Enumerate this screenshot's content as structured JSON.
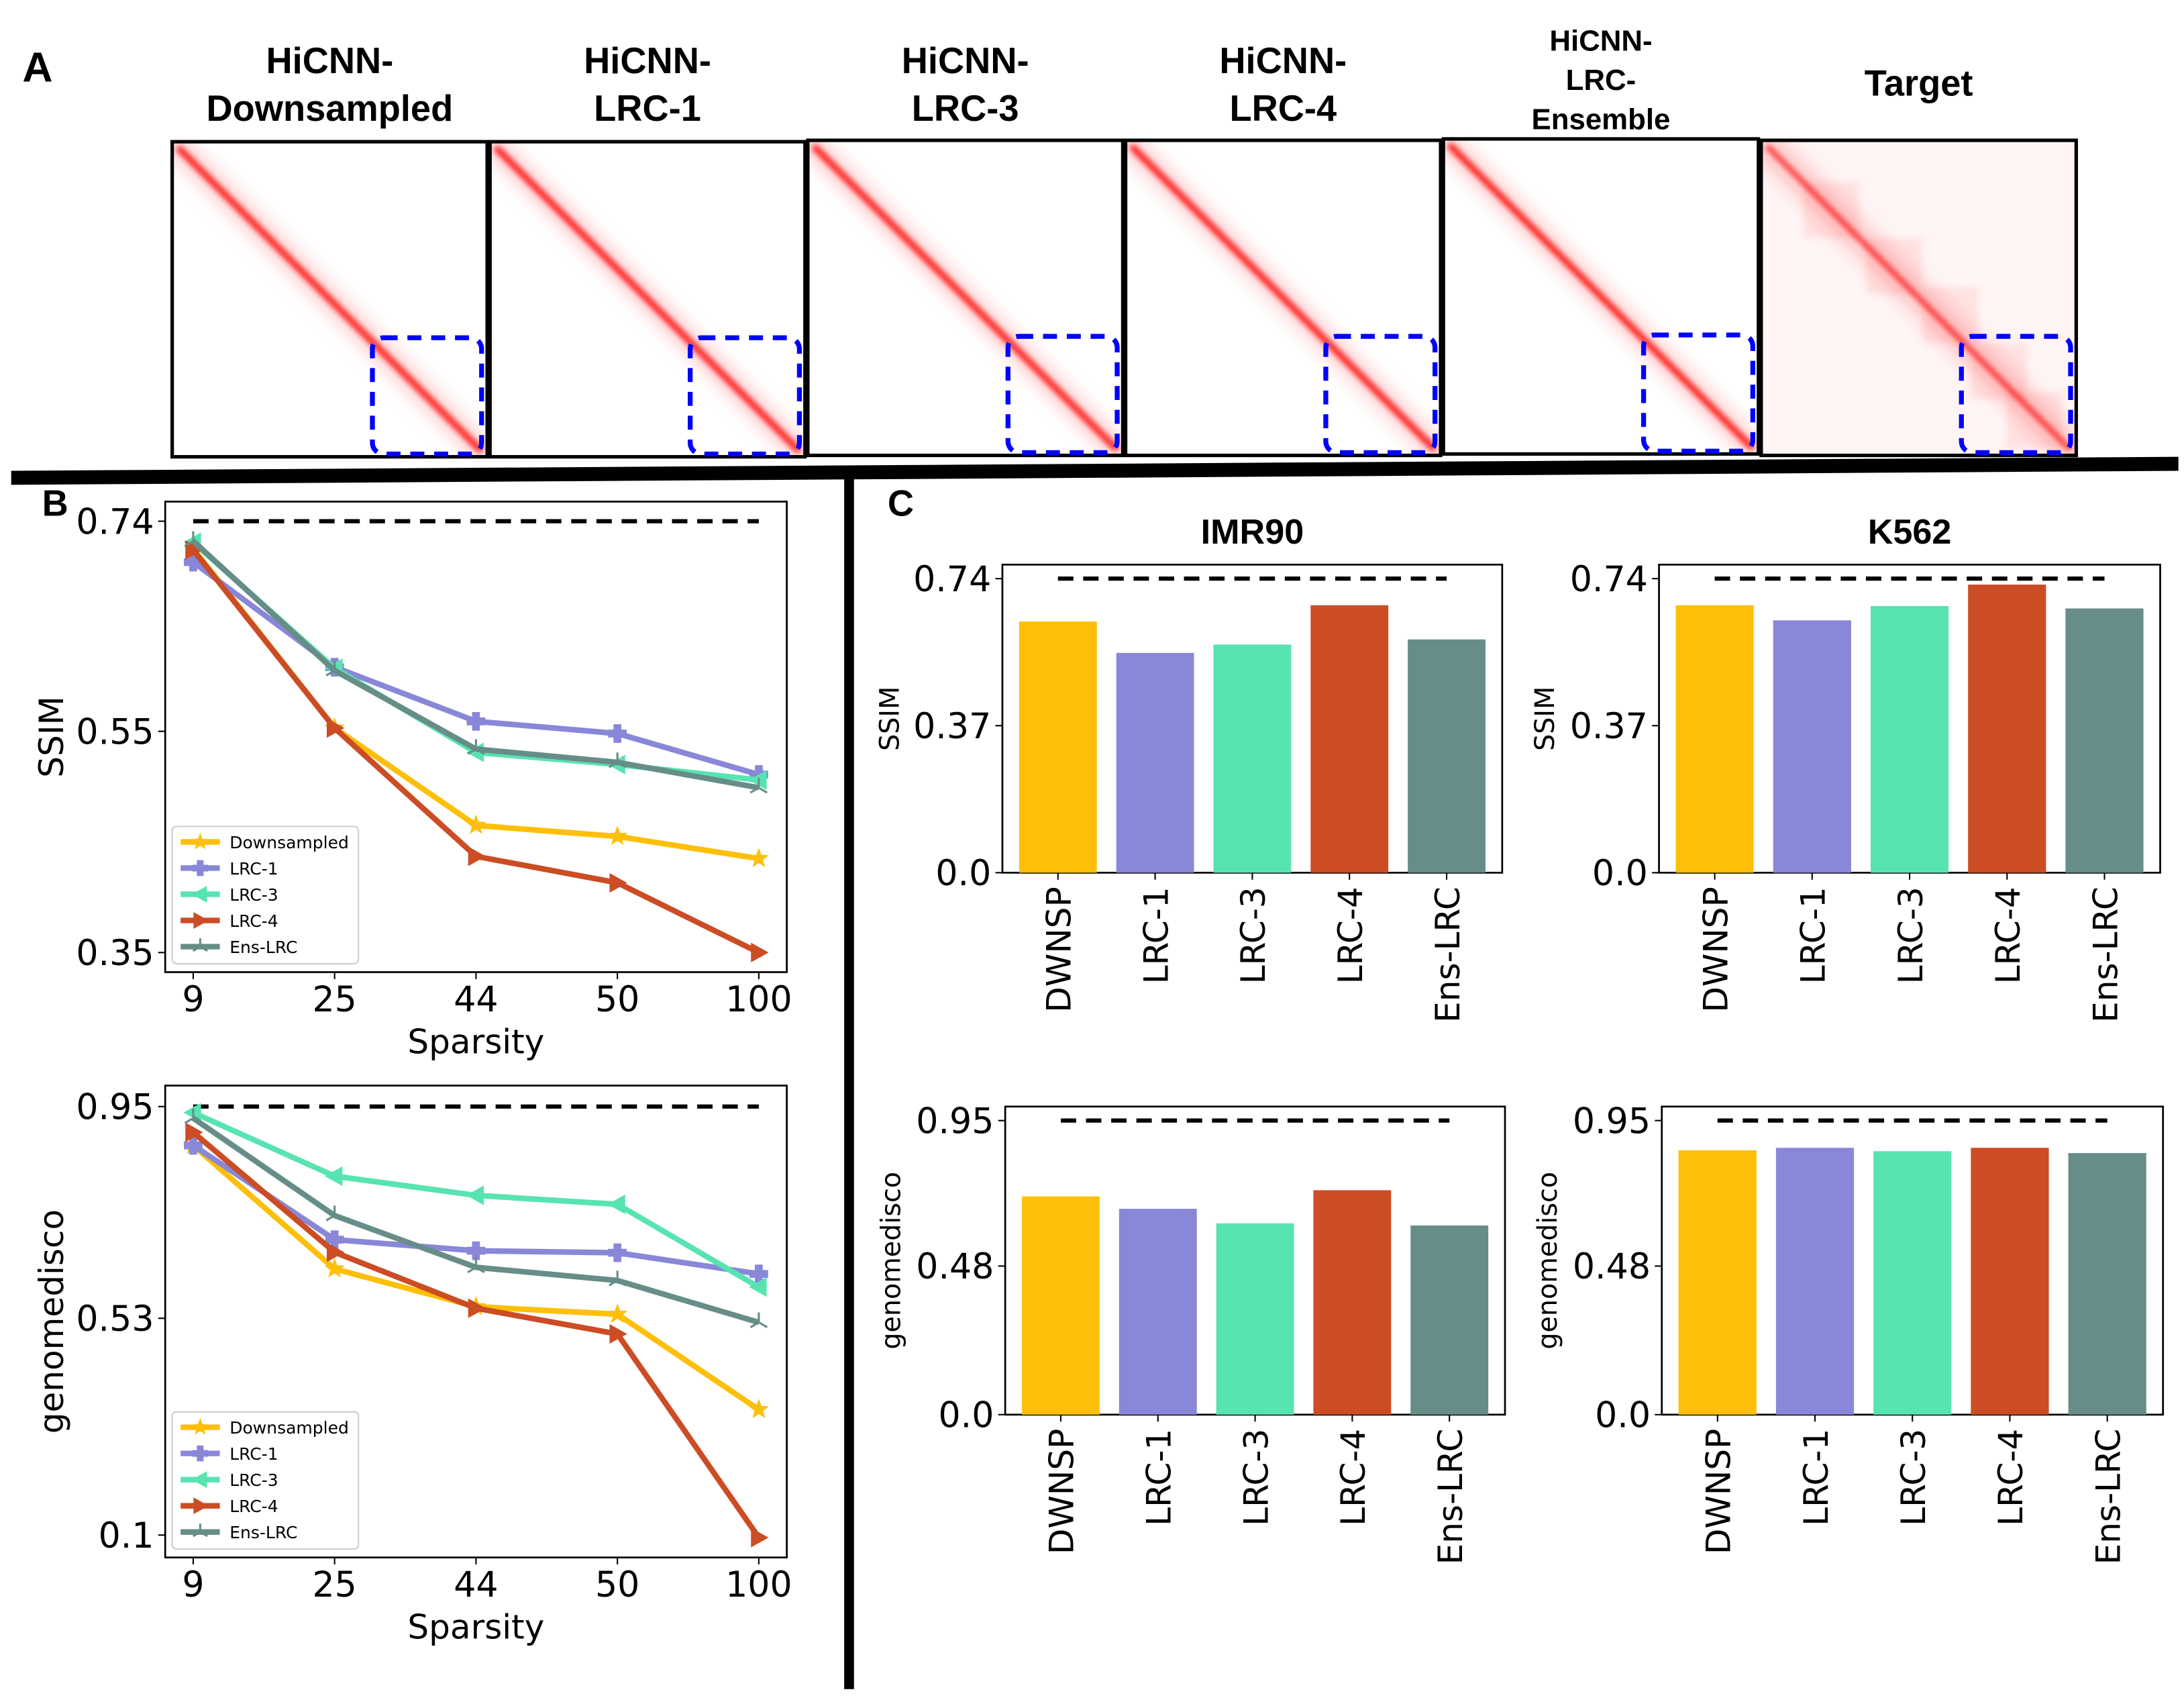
{
  "panel_labels": {
    "a": "A",
    "b": "B",
    "c": "C"
  },
  "panel_a": {
    "titles": [
      [
        "HiCNN-",
        "Downsampled"
      ],
      [
        "HiCNN-",
        "LRC-1"
      ],
      [
        "HiCNN-",
        "LRC-3"
      ],
      [
        "HiCNN-",
        "LRC-4"
      ],
      [
        "HiCNN-",
        "LRC-",
        "Ensemble"
      ],
      [
        "Target"
      ]
    ],
    "heatmap_color": "#ff0000",
    "highlight_box_color": "#0000ff"
  },
  "colors": {
    "Downsampled": "#FDBF08",
    "LRC-1": "#8887D8",
    "LRC-3": "#57E4B0",
    "LRC-4": "#CC4C24",
    "Ens-LRC": "#678D88"
  },
  "chart_data": [
    {
      "id": "b-ssim",
      "type": "line",
      "xlabel": "Sparsity",
      "ylabel": "SSIM",
      "categories": [
        "9",
        "25",
        "44",
        "50",
        "100"
      ],
      "yticks": [
        "0.74",
        "0.55",
        "0.35"
      ],
      "ylim": [
        0.35,
        0.74
      ],
      "reference_line": 0.74,
      "legend": "lower-left",
      "grid": false,
      "series": [
        {
          "name": "Downsampled",
          "marker": "star",
          "values": [
            0.715,
            0.553,
            0.465,
            0.455,
            0.435
          ]
        },
        {
          "name": "LRC-1",
          "marker": "plus-filled",
          "values": [
            0.703,
            0.608,
            0.559,
            0.548,
            0.511
          ]
        },
        {
          "name": "LRC-3",
          "marker": "triangle-left",
          "values": [
            0.721,
            0.607,
            0.531,
            0.52,
            0.506
          ]
        },
        {
          "name": "LRC-4",
          "marker": "triangle-right",
          "values": [
            0.714,
            0.553,
            0.437,
            0.413,
            0.35
          ]
        },
        {
          "name": "Ens-LRC",
          "marker": "tri-down",
          "values": [
            0.722,
            0.605,
            0.534,
            0.522,
            0.499
          ]
        }
      ]
    },
    {
      "id": "b-genomedisco",
      "type": "line",
      "xlabel": "Sparsity",
      "ylabel": "genomedisco",
      "categories": [
        "9",
        "25",
        "44",
        "50",
        "100"
      ],
      "yticks": [
        "0.95",
        "0.53",
        "0.1"
      ],
      "ylim": [
        0.1,
        0.95
      ],
      "reference_line": 0.95,
      "legend": "lower-left",
      "grid": false,
      "series": [
        {
          "name": "Downsampled",
          "marker": "star",
          "values": [
            0.873,
            0.628,
            0.553,
            0.538,
            0.349
          ]
        },
        {
          "name": "LRC-1",
          "marker": "plus-filled",
          "values": [
            0.873,
            0.686,
            0.664,
            0.66,
            0.618
          ]
        },
        {
          "name": "LRC-3",
          "marker": "triangle-left",
          "values": [
            0.938,
            0.812,
            0.774,
            0.756,
            0.592
          ]
        },
        {
          "name": "LRC-4",
          "marker": "triangle-right",
          "values": [
            0.899,
            0.661,
            0.55,
            0.499,
            0.095
          ]
        },
        {
          "name": "Ens-LRC",
          "marker": "tri-down",
          "values": [
            0.927,
            0.734,
            0.631,
            0.605,
            0.522
          ]
        }
      ]
    },
    {
      "id": "c-imr90-ssim",
      "type": "bar",
      "title": "IMR90",
      "ylabel": "SSIM",
      "categories": [
        "DWNSP",
        "LRC-1",
        "LRC-3",
        "LRC-4",
        "Ens-LRC"
      ],
      "values": [
        0.632,
        0.553,
        0.574,
        0.673,
        0.587
      ],
      "yticks": [
        "0.74",
        "0.37",
        "0.0"
      ],
      "ylim": [
        0,
        0.74
      ],
      "reference_line": 0.74
    },
    {
      "id": "c-k562-ssim",
      "type": "bar",
      "title": "K562",
      "ylabel": "SSIM",
      "categories": [
        "DWNSP",
        "LRC-1",
        "LRC-3",
        "LRC-4",
        "Ens-LRC"
      ],
      "values": [
        0.673,
        0.635,
        0.671,
        0.725,
        0.665
      ],
      "yticks": [
        "0.74",
        "0.37",
        "0.0"
      ],
      "ylim": [
        0,
        0.74
      ],
      "reference_line": 0.74
    },
    {
      "id": "c-imr90-genomedisco",
      "type": "bar",
      "ylabel": "genomedisco",
      "categories": [
        "DWNSP",
        "LRC-1",
        "LRC-3",
        "LRC-4",
        "Ens-LRC"
      ],
      "values": [
        0.705,
        0.665,
        0.618,
        0.725,
        0.611
      ],
      "yticks": [
        "0.95",
        "0.48",
        "0.0"
      ],
      "ylim": [
        0,
        0.95
      ],
      "reference_line": 0.95
    },
    {
      "id": "c-k562-genomedisco",
      "type": "bar",
      "ylabel": "genomedisco",
      "categories": [
        "DWNSP",
        "LRC-1",
        "LRC-3",
        "LRC-4",
        "Ens-LRC"
      ],
      "values": [
        0.854,
        0.862,
        0.851,
        0.862,
        0.845
      ],
      "yticks": [
        "0.95",
        "0.48",
        "0.0"
      ],
      "ylim": [
        0,
        0.95
      ],
      "reference_line": 0.95
    }
  ]
}
